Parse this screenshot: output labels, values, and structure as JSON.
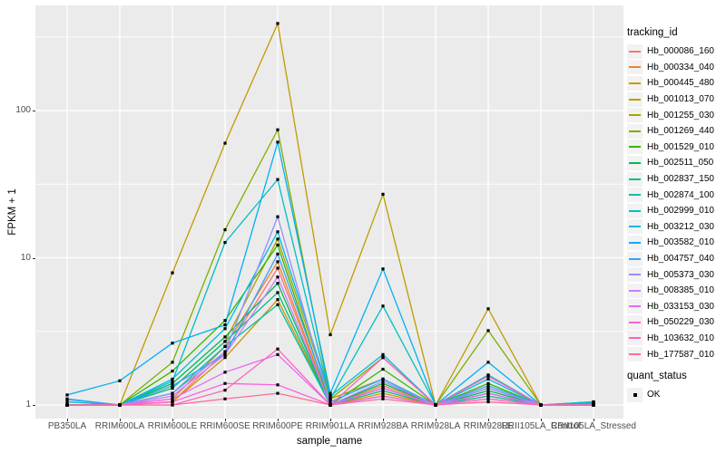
{
  "y_axis": {
    "title": "FPKM + 1",
    "ticks": [
      {
        "label": "1",
        "value": 1
      },
      {
        "label": "10",
        "value": 10
      },
      {
        "label": "100",
        "value": 100
      }
    ]
  },
  "x_axis": {
    "title": "sample_name"
  },
  "legend": {
    "tracking_title": "tracking_id",
    "quant_title": "quant_status",
    "quant_items": [
      {
        "label": "OK"
      }
    ]
  },
  "style": {
    "panel_bg": "#EBEBEB",
    "grid_color": "#FFFFFF",
    "point_color": "#000000",
    "axis_text_color": "#4D4D4D"
  },
  "chart_data": {
    "type": "line",
    "title": "",
    "xlabel": "sample_name",
    "ylabel": "FPKM + 1",
    "y_scale": "log10",
    "ylim": [
      1,
      500
    ],
    "grid": true,
    "legend_position": "right",
    "categories": [
      "PB350LA",
      "RRIM600LA",
      "RRIM600LE",
      "RRIM600SE",
      "RRIM600PE",
      "RRIM901LA",
      "RRIM928BA",
      "RRIM928LA",
      "RRIM928LE",
      "RRII105LA_Control",
      "RRII105LA_Stressed"
    ],
    "series": [
      {
        "name": "Hb_000086_160",
        "color": "#F8766D",
        "values": [
          1,
          1,
          1.05,
          2.3,
          8.5,
          1,
          1.3,
          1,
          1.15,
          1,
          1
        ]
      },
      {
        "name": "Hb_000334_040",
        "color": "#EA8331",
        "values": [
          1,
          1,
          1.1,
          2.5,
          9.4,
          1,
          1.35,
          1,
          1.2,
          1,
          1
        ]
      },
      {
        "name": "Hb_000445_480",
        "color": "#D89000",
        "values": [
          1,
          1,
          1.05,
          2.1,
          5.2,
          1,
          1.2,
          1,
          1.1,
          1,
          1
        ]
      },
      {
        "name": "Hb_001013_070",
        "color": "#C09B00",
        "values": [
          1,
          1,
          7.9,
          60,
          390,
          3,
          27,
          1,
          4.5,
          1,
          1
        ]
      },
      {
        "name": "Hb_001255_030",
        "color": "#A3A500",
        "values": [
          1,
          1,
          1.3,
          2.7,
          13.4,
          1.1,
          1.5,
          1,
          1.3,
          1,
          1
        ]
      },
      {
        "name": "Hb_001269_440",
        "color": "#7CAE00",
        "values": [
          1,
          1,
          1.95,
          15.5,
          74,
          1.1,
          2.1,
          1,
          3.2,
          1,
          1
        ]
      },
      {
        "name": "Hb_001529_010",
        "color": "#39B600",
        "values": [
          1,
          1,
          1.7,
          3.75,
          12.2,
          1,
          1.75,
          1,
          1.4,
          1,
          1
        ]
      },
      {
        "name": "Hb_002511_050",
        "color": "#00BB4E",
        "values": [
          1,
          1,
          1.4,
          2.9,
          6.7,
          1,
          1.4,
          1,
          1.25,
          1,
          1
        ]
      },
      {
        "name": "Hb_002837_150",
        "color": "#00BF7D",
        "values": [
          1,
          1,
          1.3,
          2.7,
          5.8,
          1,
          1.25,
          1,
          1.2,
          1,
          1.05
        ]
      },
      {
        "name": "Hb_002874_100",
        "color": "#00C1A3",
        "values": [
          1,
          1,
          1.2,
          2.5,
          4.8,
          1,
          1.15,
          1,
          1.15,
          1,
          1.05
        ]
      },
      {
        "name": "Hb_002999_010",
        "color": "#00BFC4",
        "values": [
          1.05,
          1,
          1.45,
          12.7,
          34,
          1.1,
          4.7,
          1,
          1.6,
          1,
          1.05
        ]
      },
      {
        "name": "Hb_003212_030",
        "color": "#00BAE0",
        "values": [
          1.1,
          1,
          1.5,
          3.3,
          15,
          1.15,
          2.2,
          1,
          1.5,
          1,
          1.03
        ]
      },
      {
        "name": "Hb_003582_010",
        "color": "#00B0F6",
        "values": [
          1.17,
          1.46,
          2.63,
          3.5,
          61,
          1.2,
          8.4,
          1,
          1.95,
          1,
          1.02
        ]
      },
      {
        "name": "Hb_004757_040",
        "color": "#35A2FF",
        "values": [
          1.09,
          1,
          1.35,
          2.2,
          10.6,
          1.05,
          1.5,
          1,
          1.35,
          1,
          1.02
        ]
      },
      {
        "name": "Hb_005373_030",
        "color": "#9590FF",
        "values": [
          1,
          1,
          1.2,
          2.3,
          19,
          1,
          1.45,
          1,
          1.3,
          1,
          1
        ]
      },
      {
        "name": "Hb_008385_010",
        "color": "#C77CFF",
        "values": [
          1,
          1,
          1.15,
          2.2,
          7.4,
          1,
          1.3,
          1,
          1.2,
          1,
          1
        ]
      },
      {
        "name": "Hb_033153_030",
        "color": "#E76BF3",
        "values": [
          1,
          1,
          1.1,
          1.67,
          2.2,
          1,
          1.3,
          1,
          1.2,
          1,
          1
        ]
      },
      {
        "name": "Hb_050229_030",
        "color": "#FA62DB",
        "values": [
          1,
          1,
          1.05,
          1.4,
          1.37,
          1,
          1.15,
          1,
          1.1,
          1,
          1
        ]
      },
      {
        "name": "Hb_103632_010",
        "color": "#FF62BC",
        "values": [
          1,
          1,
          1,
          1.26,
          2.4,
          1,
          2.1,
          1,
          1.57,
          1,
          1
        ]
      },
      {
        "name": "Hb_177587_010",
        "color": "#FF6A98",
        "values": [
          1,
          1,
          1,
          1.1,
          1.2,
          1,
          1.1,
          1,
          1.05,
          1,
          1
        ]
      }
    ]
  }
}
